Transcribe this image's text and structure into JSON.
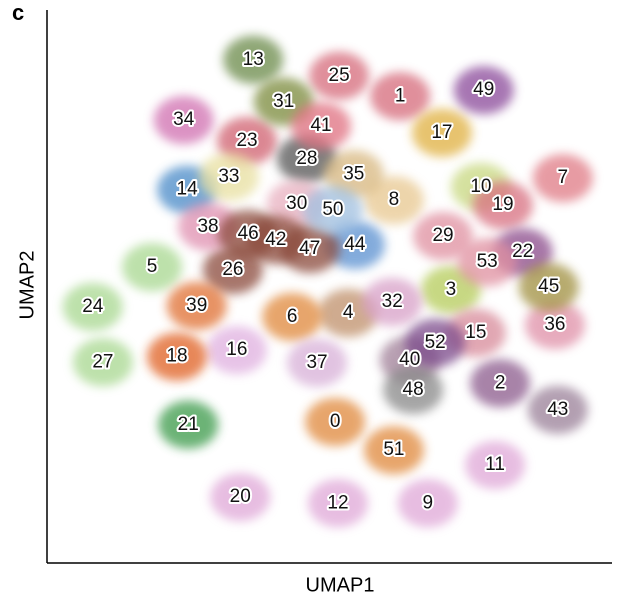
{
  "chart_data": {
    "type": "scatter",
    "panel_label": "c",
    "x_label": "UMAP1",
    "y_label": "UMAP2",
    "xlim": [
      0,
      100
    ],
    "ylim": [
      0,
      100
    ],
    "clusters": [
      {
        "label": "0",
        "color": "#e0883a",
        "x": 51.0,
        "y": 25.5
      },
      {
        "label": "1",
        "color": "#d66a7a",
        "x": 62.5,
        "y": 84.4
      },
      {
        "label": "2",
        "color": "#8b5a8c",
        "x": 80.2,
        "y": 32.5
      },
      {
        "label": "3",
        "color": "#b5cc5a",
        "x": 71.5,
        "y": 49.4
      },
      {
        "label": "4",
        "color": "#c0906a",
        "x": 53.3,
        "y": 45.2
      },
      {
        "label": "5",
        "color": "#a8d890",
        "x": 18.6,
        "y": 53.5
      },
      {
        "label": "6",
        "color": "#e0883a",
        "x": 43.4,
        "y": 44.5
      },
      {
        "label": "7",
        "color": "#e07a85",
        "x": 91.3,
        "y": 69.6
      },
      {
        "label": "8",
        "color": "#e8c890",
        "x": 61.4,
        "y": 65.6
      },
      {
        "label": "9",
        "color": "#e0a8d8",
        "x": 67.4,
        "y": 10.8
      },
      {
        "label": "10",
        "color": "#c8d880",
        "x": 76.8,
        "y": 68.0
      },
      {
        "label": "11",
        "color": "#e0a8d8",
        "x": 79.3,
        "y": 17.7
      },
      {
        "label": "12",
        "color": "#e0a8d8",
        "x": 51.5,
        "y": 10.8
      },
      {
        "label": "13",
        "color": "#6b8a4a",
        "x": 36.5,
        "y": 91.0
      },
      {
        "label": "14",
        "color": "#4a8ac8",
        "x": 24.8,
        "y": 67.5
      },
      {
        "label": "15",
        "color": "#d88a9a",
        "x": 75.9,
        "y": 41.6
      },
      {
        "label": "16",
        "color": "#e0b0e0",
        "x": 33.6,
        "y": 38.5
      },
      {
        "label": "17",
        "color": "#e0b040",
        "x": 69.9,
        "y": 77.8
      },
      {
        "label": "18",
        "color": "#e06020",
        "x": 23.0,
        "y": 37.3
      },
      {
        "label": "19",
        "color": "#d87080",
        "x": 80.7,
        "y": 64.7
      },
      {
        "label": "20",
        "color": "#e0a8d8",
        "x": 34.2,
        "y": 11.9
      },
      {
        "label": "21",
        "color": "#3a9a4a",
        "x": 25.0,
        "y": 25.0
      },
      {
        "label": "22",
        "color": "#8a4a8a",
        "x": 84.2,
        "y": 56.2
      },
      {
        "label": "23",
        "color": "#d06070",
        "x": 35.4,
        "y": 76.3
      },
      {
        "label": "24",
        "color": "#a8d890",
        "x": 8.1,
        "y": 46.3
      },
      {
        "label": "25",
        "color": "#d66a7a",
        "x": 51.7,
        "y": 88.1
      },
      {
        "label": "26",
        "color": "#8a4a3a",
        "x": 32.9,
        "y": 53.0
      },
      {
        "label": "27",
        "color": "#a8d890",
        "x": 9.9,
        "y": 36.3
      },
      {
        "label": "28",
        "color": "#555555",
        "x": 46.0,
        "y": 73.1
      },
      {
        "label": "29",
        "color": "#e090a0",
        "x": 70.1,
        "y": 59.1
      },
      {
        "label": "30",
        "color": "#e8b0c0",
        "x": 44.2,
        "y": 64.9
      },
      {
        "label": "31",
        "color": "#7a8a3a",
        "x": 41.9,
        "y": 83.4
      },
      {
        "label": "32",
        "color": "#d8a0c8",
        "x": 61.1,
        "y": 47.2
      },
      {
        "label": "33",
        "color": "#e8e0a0",
        "x": 32.2,
        "y": 69.8
      },
      {
        "label": "34",
        "color": "#d070b0",
        "x": 24.2,
        "y": 80.1
      },
      {
        "label": "35",
        "color": "#d8b880",
        "x": 54.3,
        "y": 70.3
      },
      {
        "label": "36",
        "color": "#e090a8",
        "x": 89.9,
        "y": 43.0
      },
      {
        "label": "37",
        "color": "#d8b0d8",
        "x": 47.8,
        "y": 36.2
      },
      {
        "label": "38",
        "color": "#e090b0",
        "x": 28.5,
        "y": 60.8
      },
      {
        "label": "39",
        "color": "#e07030",
        "x": 26.5,
        "y": 46.5
      },
      {
        "label": "40",
        "color": "#a08098",
        "x": 64.2,
        "y": 36.7
      },
      {
        "label": "41",
        "color": "#e07080",
        "x": 48.5,
        "y": 79.0
      },
      {
        "label": "42",
        "color": "#8a4a3a",
        "x": 40.5,
        "y": 58.4
      },
      {
        "label": "43",
        "color": "#9a8098",
        "x": 90.4,
        "y": 27.7
      },
      {
        "label": "44",
        "color": "#5a90d0",
        "x": 54.5,
        "y": 57.5
      },
      {
        "label": "45",
        "color": "#a09040",
        "x": 88.8,
        "y": 49.9
      },
      {
        "label": "46",
        "color": "#8a4a3a",
        "x": 35.6,
        "y": 59.5
      },
      {
        "label": "47",
        "color": "#8a4a3a",
        "x": 46.5,
        "y": 56.8
      },
      {
        "label": "48",
        "color": "#888888",
        "x": 64.8,
        "y": 31.3
      },
      {
        "label": "49",
        "color": "#8a4a9a",
        "x": 77.3,
        "y": 85.5
      },
      {
        "label": "50",
        "color": "#a0c0e0",
        "x": 50.6,
        "y": 63.8
      },
      {
        "label": "51",
        "color": "#e0883a",
        "x": 61.4,
        "y": 20.4
      },
      {
        "label": "52",
        "color": "#7a4a8a",
        "x": 68.7,
        "y": 39.8
      },
      {
        "label": "53",
        "color": "#e090a0",
        "x": 77.9,
        "y": 54.4
      }
    ]
  }
}
